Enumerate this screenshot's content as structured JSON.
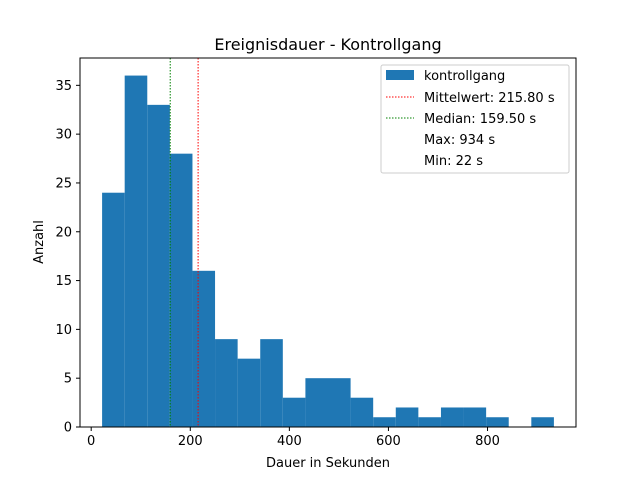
{
  "chart_data": {
    "type": "bar",
    "title": "Ereignisdauer - Kontrollgang",
    "xlabel": "Dauer in Sekunden",
    "ylabel": "Anzahl",
    "xlim": [
      -22.6,
      978.6
    ],
    "ylim": [
      0,
      37.8
    ],
    "xticks": [
      0,
      200,
      400,
      600,
      800
    ],
    "yticks": [
      0,
      5,
      10,
      15,
      20,
      25,
      30,
      35
    ],
    "bin_edges": [
      22,
      67.6,
      113.2,
      158.8,
      204.4,
      250,
      295.6,
      341.2,
      386.8,
      432.4,
      478,
      523.6,
      569.2,
      614.8,
      660.4,
      706,
      751.6,
      797.2,
      842.8,
      888.4,
      934
    ],
    "counts": [
      24,
      36,
      33,
      28,
      16,
      9,
      7,
      9,
      3,
      5,
      5,
      3,
      1,
      2,
      1,
      2,
      2,
      1,
      0,
      1
    ],
    "bar_series_name": "kontrollgang",
    "mean": 215.8,
    "median": 159.5,
    "legend_position": "upper right",
    "legend": {
      "bars": "kontrollgang",
      "mean": "Mittelwert: 215.80 s",
      "median": "Median: 159.50 s",
      "max": "Max: 934 s",
      "min": "Min: 22 s"
    },
    "colors": {
      "bars": "#1f77b4",
      "mean": "#ff0000",
      "median": "#008000"
    }
  }
}
